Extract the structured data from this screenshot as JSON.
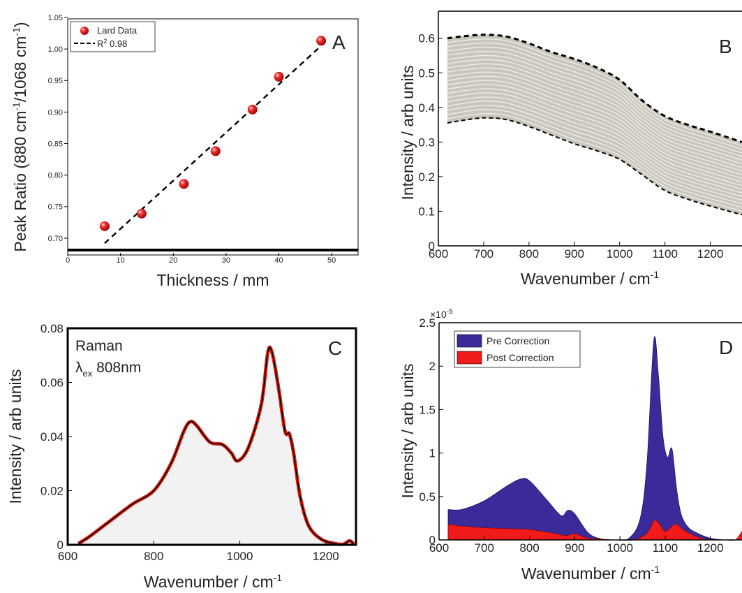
{
  "chart_data": [
    {
      "id": "A",
      "type": "scatter",
      "panel_label": "A",
      "xlabel": "Thickness / mm",
      "ylabel_main": "Peak Ratio (880 cm",
      "ylabel_sup1": "-1",
      "ylabel_mid": "/1068 cm",
      "ylabel_sup2": "-1",
      "ylabel_end": ")",
      "xlim": [
        0,
        55
      ],
      "ylim": [
        0.675,
        1.05
      ],
      "xticks": [
        0,
        10,
        20,
        30,
        40,
        50
      ],
      "yticks": [
        0.7,
        0.75,
        0.8,
        0.85,
        0.9,
        0.95,
        1.0,
        1.05
      ],
      "ytick_labels": [
        "0.70",
        "0.75",
        "0.80",
        "0.85",
        "0.90",
        "0.95",
        "1.00",
        "1.05"
      ],
      "series": [
        {
          "name": "Lard Data",
          "x": [
            7,
            14,
            22,
            28,
            35,
            40,
            48
          ],
          "y": [
            0.719,
            0.739,
            0.786,
            0.838,
            0.904,
            0.956,
            1.013
          ]
        }
      ],
      "fit": {
        "name_prefix": "R",
        "name_sup": "2",
        "name_suffix": " 0.98",
        "x": [
          7,
          48
        ],
        "y": [
          0.692,
          1.005
        ]
      },
      "legend_position": "top-left",
      "colors": {
        "points": "#e01010",
        "fit": "#000000"
      }
    },
    {
      "id": "B",
      "type": "line",
      "panel_label": "B",
      "xlabel_main": "Wavenumber / cm",
      "xlabel_sup": "-1",
      "ylabel": "Intensity / arb units",
      "xlim": [
        600,
        1270
      ],
      "ylim": [
        0,
        0.65
      ],
      "xticks": [
        600,
        700,
        800,
        900,
        1000,
        1100,
        1200
      ],
      "yticks": [
        0,
        0.1,
        0.2,
        0.3,
        0.4,
        0.5,
        0.6
      ],
      "ytick_labels": [
        "0",
        "0.1",
        "0.2",
        "0.3",
        "0.4",
        "0.5",
        "0.6"
      ],
      "x": [
        620,
        650,
        700,
        750,
        800,
        850,
        900,
        950,
        1000,
        1050,
        1100,
        1150,
        1200,
        1270
      ],
      "upper_envelope": [
        0.6,
        0.605,
        0.61,
        0.605,
        0.585,
        0.56,
        0.54,
        0.515,
        0.48,
        0.42,
        0.375,
        0.35,
        0.33,
        0.3
      ],
      "lower_envelope": [
        0.355,
        0.362,
        0.37,
        0.365,
        0.345,
        0.32,
        0.295,
        0.275,
        0.25,
        0.205,
        0.16,
        0.135,
        0.115,
        0.09
      ],
      "n_spectra": 20,
      "colors": {
        "band": "#c9c6bd",
        "spectra": "#eeece6",
        "envelope": "#000000"
      }
    },
    {
      "id": "C",
      "type": "area",
      "panel_label": "C",
      "annotation_line1": "Raman",
      "annotation_lambda": "λ",
      "annotation_sub": "ex",
      "annotation_value": " 808nm",
      "xlabel_main": "Wavenumber / cm",
      "xlabel_sup": "-1",
      "ylabel": "Intensity / arb units",
      "xlim": [
        600,
        1270
      ],
      "ylim": [
        0,
        0.08
      ],
      "xticks": [
        600,
        800,
        1000,
        1200
      ],
      "yticks": [
        0,
        0.02,
        0.04,
        0.06,
        0.08
      ],
      "ytick_labels": [
        "0",
        "0.02",
        "0.04",
        "0.06",
        "0.08"
      ],
      "x": [
        625,
        650,
        700,
        750,
        800,
        840,
        870,
        885,
        900,
        930,
        960,
        980,
        995,
        1020,
        1050,
        1065,
        1075,
        1090,
        1105,
        1115,
        1125,
        1140,
        1160,
        1190,
        1220,
        1240,
        1255,
        1265
      ],
      "y": [
        0.0005,
        0.003,
        0.009,
        0.015,
        0.02,
        0.03,
        0.042,
        0.0455,
        0.044,
        0.038,
        0.037,
        0.034,
        0.031,
        0.036,
        0.052,
        0.071,
        0.071,
        0.058,
        0.042,
        0.041,
        0.034,
        0.018,
        0.007,
        0.002,
        0.0005,
        0.0002,
        0.0015,
        0.0003
      ],
      "colors": {
        "fill": "#f2f2f2",
        "line": "#000000",
        "halo": "#e02010"
      }
    },
    {
      "id": "D",
      "type": "area",
      "panel_label": "D",
      "exponent_base": "×10",
      "exponent_power": "-5",
      "xlabel_main": "Wavenumber / cm",
      "xlabel_sup": "-1",
      "ylabel": "Intensity / arb units",
      "xlim": [
        600,
        1270
      ],
      "ylim": [
        0,
        2.5
      ],
      "xticks": [
        600,
        700,
        800,
        900,
        1000,
        1100,
        1200
      ],
      "yticks": [
        0,
        0.5,
        1,
        1.5,
        2,
        2.5
      ],
      "ytick_labels": [
        "0",
        "0.5",
        "1",
        "1.5",
        "2",
        "2.5"
      ],
      "series": [
        {
          "name": "Pre Correction",
          "x": [
            620,
            650,
            700,
            750,
            780,
            800,
            840,
            870,
            885,
            900,
            930,
            960,
            990,
            1020,
            1045,
            1060,
            1075,
            1085,
            1095,
            1105,
            1115,
            1125,
            1135,
            1150,
            1170,
            1200,
            1230,
            1255,
            1270
          ],
          "y": [
            0.35,
            0.35,
            0.45,
            0.62,
            0.7,
            0.68,
            0.45,
            0.28,
            0.34,
            0.3,
            0.08,
            0.01,
            0.0,
            0.02,
            0.25,
            0.9,
            2.3,
            1.9,
            1.2,
            0.95,
            1.05,
            0.6,
            0.3,
            0.15,
            0.08,
            0.02,
            0.0,
            0.0,
            0.0
          ]
        },
        {
          "name": "Post Correction",
          "x": [
            620,
            650,
            700,
            750,
            800,
            850,
            880,
            900,
            930,
            960,
            990,
            1030,
            1060,
            1075,
            1085,
            1100,
            1115,
            1125,
            1140,
            1160,
            1180,
            1200,
            1230,
            1255,
            1270
          ],
          "y": [
            0.18,
            0.16,
            0.14,
            0.13,
            0.12,
            0.08,
            0.05,
            0.07,
            0.02,
            0.01,
            0.0,
            0.0,
            0.08,
            0.22,
            0.2,
            0.1,
            0.16,
            0.18,
            0.12,
            0.06,
            0.02,
            0.0,
            0.0,
            0.0,
            0.1
          ]
        }
      ],
      "legend_position": "top-left",
      "colors": {
        "pre": "#3b2b9a",
        "post": "#f21b1b"
      }
    }
  ]
}
